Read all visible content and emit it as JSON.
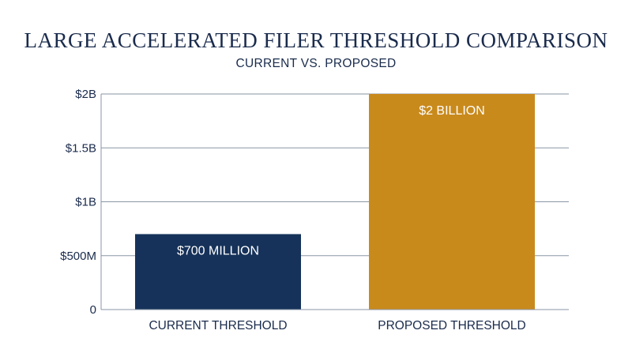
{
  "chart_data": {
    "type": "bar",
    "title": "LARGE ACCELERATED FILER THRESHOLD COMPARISON",
    "subtitle": "CURRENT VS. PROPOSED",
    "categories": [
      "CURRENT THRESHOLD",
      "PROPOSED THRESHOLD"
    ],
    "values": [
      700000000,
      2000000000
    ],
    "data_labels": [
      "$700 MILLION",
      "$2 BILLION"
    ],
    "bar_colors": [
      "#16325a",
      "#c98a1c"
    ],
    "data_label_color": "#ffffff",
    "ylim": [
      0,
      2000000000
    ],
    "yticks": [
      0,
      500000000,
      1000000000,
      1500000000,
      2000000000
    ],
    "ytick_labels": [
      "0",
      "$500M",
      "$1B",
      "$1.5B",
      "$2B"
    ],
    "grid": true,
    "grid_color": "#8a95a5",
    "text_color": "#1a2b4c",
    "xlabel": "",
    "ylabel": ""
  }
}
